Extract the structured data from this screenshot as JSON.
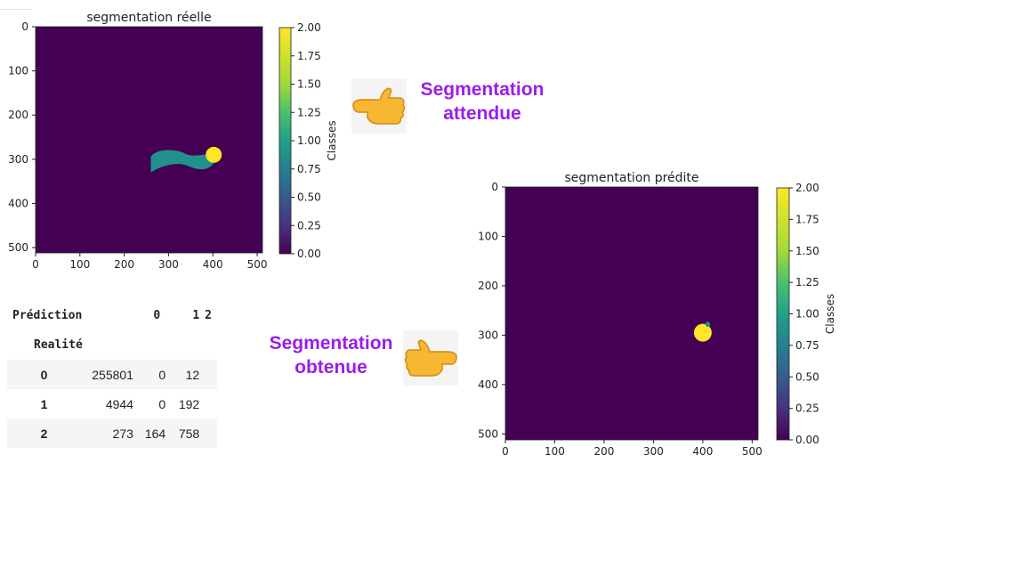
{
  "chart_data": [
    {
      "type": "heatmap",
      "title": "segmentation réelle",
      "x_ticks": [
        0,
        100,
        200,
        300,
        400,
        500
      ],
      "y_ticks": [
        0,
        100,
        200,
        300,
        400,
        500
      ],
      "xlim": [
        0,
        512
      ],
      "ylim": [
        512,
        0
      ],
      "colorbar": {
        "label": "Classes",
        "range": [
          0.0,
          2.0
        ],
        "ticks": [
          "0.00",
          "0.25",
          "0.50",
          "0.75",
          "1.00",
          "1.25",
          "1.50",
          "1.75",
          "2.00"
        ]
      },
      "background_class": 0,
      "regions": [
        {
          "class": 1,
          "description": "elongated region",
          "x_range": [
            260,
            405
          ],
          "y_range": [
            275,
            330
          ]
        },
        {
          "class": 2,
          "description": "round blob",
          "center": [
            402,
            290
          ],
          "radius": 18
        }
      ]
    },
    {
      "type": "heatmap",
      "title": "segmentation prédite",
      "x_ticks": [
        0,
        100,
        200,
        300,
        400,
        500
      ],
      "y_ticks": [
        0,
        100,
        200,
        300,
        400,
        500
      ],
      "xlim": [
        0,
        512
      ],
      "ylim": [
        512,
        0
      ],
      "colorbar": {
        "label": "Classes",
        "range": [
          0.0,
          2.0
        ],
        "ticks": [
          "0.00",
          "0.25",
          "0.50",
          "0.75",
          "1.00",
          "1.25",
          "1.50",
          "1.75",
          "2.00"
        ]
      },
      "background_class": 0,
      "regions": [
        {
          "class": 2,
          "description": "small blob",
          "center": [
            400,
            295
          ],
          "radius": 18
        },
        {
          "class": 1,
          "description": "edge fragment",
          "center": [
            410,
            278
          ],
          "radius": 5
        }
      ]
    },
    {
      "type": "table",
      "header_left": "Prédiction",
      "row_header": "Realité",
      "columns": [
        "0",
        "1",
        "2"
      ],
      "rows": [
        {
          "label": "0",
          "values": [
            "255801",
            "0",
            "12"
          ]
        },
        {
          "label": "1",
          "values": [
            "4944",
            "0",
            "192"
          ]
        },
        {
          "label": "2",
          "values": [
            "273",
            "164",
            "758"
          ]
        }
      ]
    }
  ],
  "callouts": {
    "expected": [
      "Segmentation",
      "attendue"
    ],
    "obtained": [
      "Segmentation",
      "obtenue"
    ]
  },
  "colors": {
    "class_0": "#440154",
    "class_1": "#21918c",
    "class_2": "#fde725",
    "callout_text": "#9b1de8"
  },
  "icons": {
    "expected": "hand-pointing-left-icon",
    "obtained": "hand-pointing-right-icon"
  }
}
